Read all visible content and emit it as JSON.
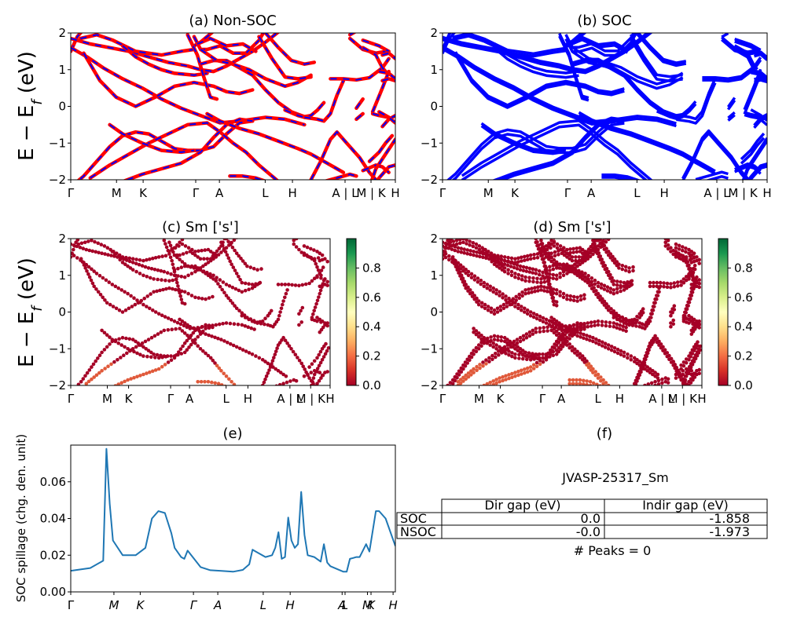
{
  "colors": {
    "nonsoc_main": "#ff0000",
    "nonsoc_dash": "#0000ff",
    "soc": "#0000ff",
    "spillage": "#1f77b4",
    "cmap_low": "#a50026",
    "cmap_high": "#006837"
  },
  "ylabel_band": "E − E_f (eV)",
  "band_ticks": {
    "y": [
      "2",
      "1",
      "0",
      "−1",
      "−2"
    ],
    "k_labels": [
      "Γ",
      "M",
      "K",
      "Γ",
      "A",
      "L",
      "H",
      "A | L",
      "M | K",
      "H"
    ]
  },
  "colorbar": {
    "ticks": [
      "0.8",
      "0.6",
      "0.4",
      "0.2",
      "0.0"
    ]
  },
  "panels": {
    "a": {
      "title": "(a) Non-SOC"
    },
    "b": {
      "title": "(b) SOC"
    },
    "c": {
      "title": "(c)  Sm ['s']"
    },
    "d": {
      "title": "(d) Sm ['s']"
    },
    "e": {
      "title": "(e)",
      "ylabel": "SOC spillage (chg. den. unit)",
      "y_ticks": [
        "0.06",
        "0.04",
        "0.02",
        "0.00"
      ],
      "x_labels": [
        "Γ",
        "M",
        "K",
        "Γ",
        "A",
        "L",
        "H",
        "A",
        "L",
        "M",
        "K",
        "H"
      ]
    },
    "f": {
      "title": "(f)"
    }
  },
  "chart_data": [
    {
      "type": "line",
      "panel": "a",
      "title": "(a) Non-SOC",
      "ylabel": "E − E_f (eV)",
      "ylim": [
        -2,
        2
      ],
      "x_ticks": [
        "Γ",
        "M",
        "K",
        "Γ",
        "A",
        "L",
        "H",
        "A | L",
        "M | K",
        "H"
      ],
      "grid": false,
      "bands": [
        [
          [
            0,
            1.5
          ],
          [
            0.15,
            2.0
          ]
        ],
        [
          [
            0,
            1.6
          ],
          [
            0.1,
            1.3
          ],
          [
            0.3,
            0.6
          ],
          [
            0.55,
            0.2
          ]
        ],
        [
          [
            0,
            -1.9
          ],
          [
            0.25,
            -1.6
          ],
          [
            0.55,
            -1.3
          ]
        ],
        [
          [
            0.1,
            -0.5
          ],
          [
            0.3,
            -1.2
          ],
          [
            0.55,
            -1.2
          ]
        ],
        [
          [
            0.2,
            -2.0
          ],
          [
            0.45,
            -1.5
          ]
        ]
      ]
    },
    {
      "type": "line",
      "panel": "b",
      "title": "(b) SOC",
      "ylim": [
        -2,
        2
      ],
      "x_ticks": [
        "Γ",
        "M",
        "K",
        "Γ",
        "A",
        "L",
        "H",
        "A | L",
        "M | K",
        "H"
      ],
      "grid": false
    },
    {
      "type": "scatter",
      "panel": "c",
      "title": "(c)  Sm ['s']",
      "ylabel": "E − E_f (eV)",
      "ylim": [
        -2,
        2
      ],
      "colorbar_range": [
        0.0,
        1.0
      ],
      "colorbar_ticks": [
        "0.0",
        "0.2",
        "0.4",
        "0.6",
        "0.8"
      ]
    },
    {
      "type": "scatter",
      "panel": "d",
      "title": "(d) Sm ['s']",
      "ylim": [
        -2,
        2
      ],
      "colorbar_range": [
        0.0,
        1.0
      ],
      "colorbar_ticks": [
        "0.0",
        "0.2",
        "0.4",
        "0.6",
        "0.8"
      ]
    },
    {
      "type": "line",
      "panel": "e",
      "title": "(e)",
      "ylabel": "SOC spillage (chg. den. unit)",
      "ylim": [
        0,
        0.08
      ],
      "y_ticks": [
        "0.00",
        "0.02",
        "0.04",
        "0.06"
      ],
      "x_ticks": [
        "Γ",
        "M",
        "K",
        "Γ",
        "A",
        "L",
        "H",
        "A",
        "L",
        "M",
        "K",
        "H"
      ],
      "series": [
        {
          "x": [
            0,
            0.06,
            0.1,
            0.11,
            0.12,
            0.13,
            0.16,
            0.2,
            0.23,
            0.25,
            0.27,
            0.29,
            0.31,
            0.32,
            0.34,
            0.35,
            0.36,
            0.4,
            0.43,
            0.46,
            0.5,
            0.53,
            0.55,
            0.56,
            0.57,
            0.6,
            0.62,
            0.63,
            0.64,
            0.65,
            0.66,
            0.67,
            0.68,
            0.69,
            0.7,
            0.71,
            0.72,
            0.73,
            0.75,
            0.77,
            0.78,
            0.79,
            0.8,
            0.84,
            0.85,
            0.86,
            0.87,
            0.88,
            0.89,
            0.91,
            0.92,
            0.94,
            0.95,
            0.97,
            1.0
          ],
          "y": [
            0.0115,
            0.013,
            0.017,
            0.078,
            0.048,
            0.028,
            0.02,
            0.02,
            0.024,
            0.04,
            0.044,
            0.043,
            0.032,
            0.024,
            0.019,
            0.018,
            0.0225,
            0.0135,
            0.0118,
            0.0115,
            0.011,
            0.012,
            0.015,
            0.023,
            0.022,
            0.019,
            0.02,
            0.024,
            0.0325,
            0.018,
            0.019,
            0.0405,
            0.028,
            0.024,
            0.026,
            0.0545,
            0.031,
            0.02,
            0.019,
            0.0165,
            0.026,
            0.016,
            0.014,
            0.011,
            0.011,
            0.018,
            0.0185,
            0.019,
            0.019,
            0.026,
            0.022,
            0.044,
            0.044,
            0.04,
            0.025
          ]
        }
      ]
    },
    {
      "type": "table",
      "panel": "f",
      "title": "(f)",
      "caption": "JVASP-25317_Sm",
      "columns": [
        "",
        "Dir gap (eV)",
        "Indir gap (eV)"
      ],
      "rows": [
        [
          "SOC",
          "0.0",
          "-1.858"
        ],
        [
          "NSOC",
          "-0.0",
          "-1.973"
        ]
      ],
      "footer": "# Peaks = 0"
    }
  ],
  "table_f": {
    "caption": "JVASP-25317_Sm",
    "columns": [
      "Dir gap (eV)",
      "Indir gap (eV)"
    ],
    "rows": [
      {
        "label": "SOC",
        "dir": "0.0",
        "indir": "-1.858"
      },
      {
        "label": "NSOC",
        "dir": "-0.0",
        "indir": "-1.973"
      }
    ],
    "footer": "# Peaks = 0"
  }
}
